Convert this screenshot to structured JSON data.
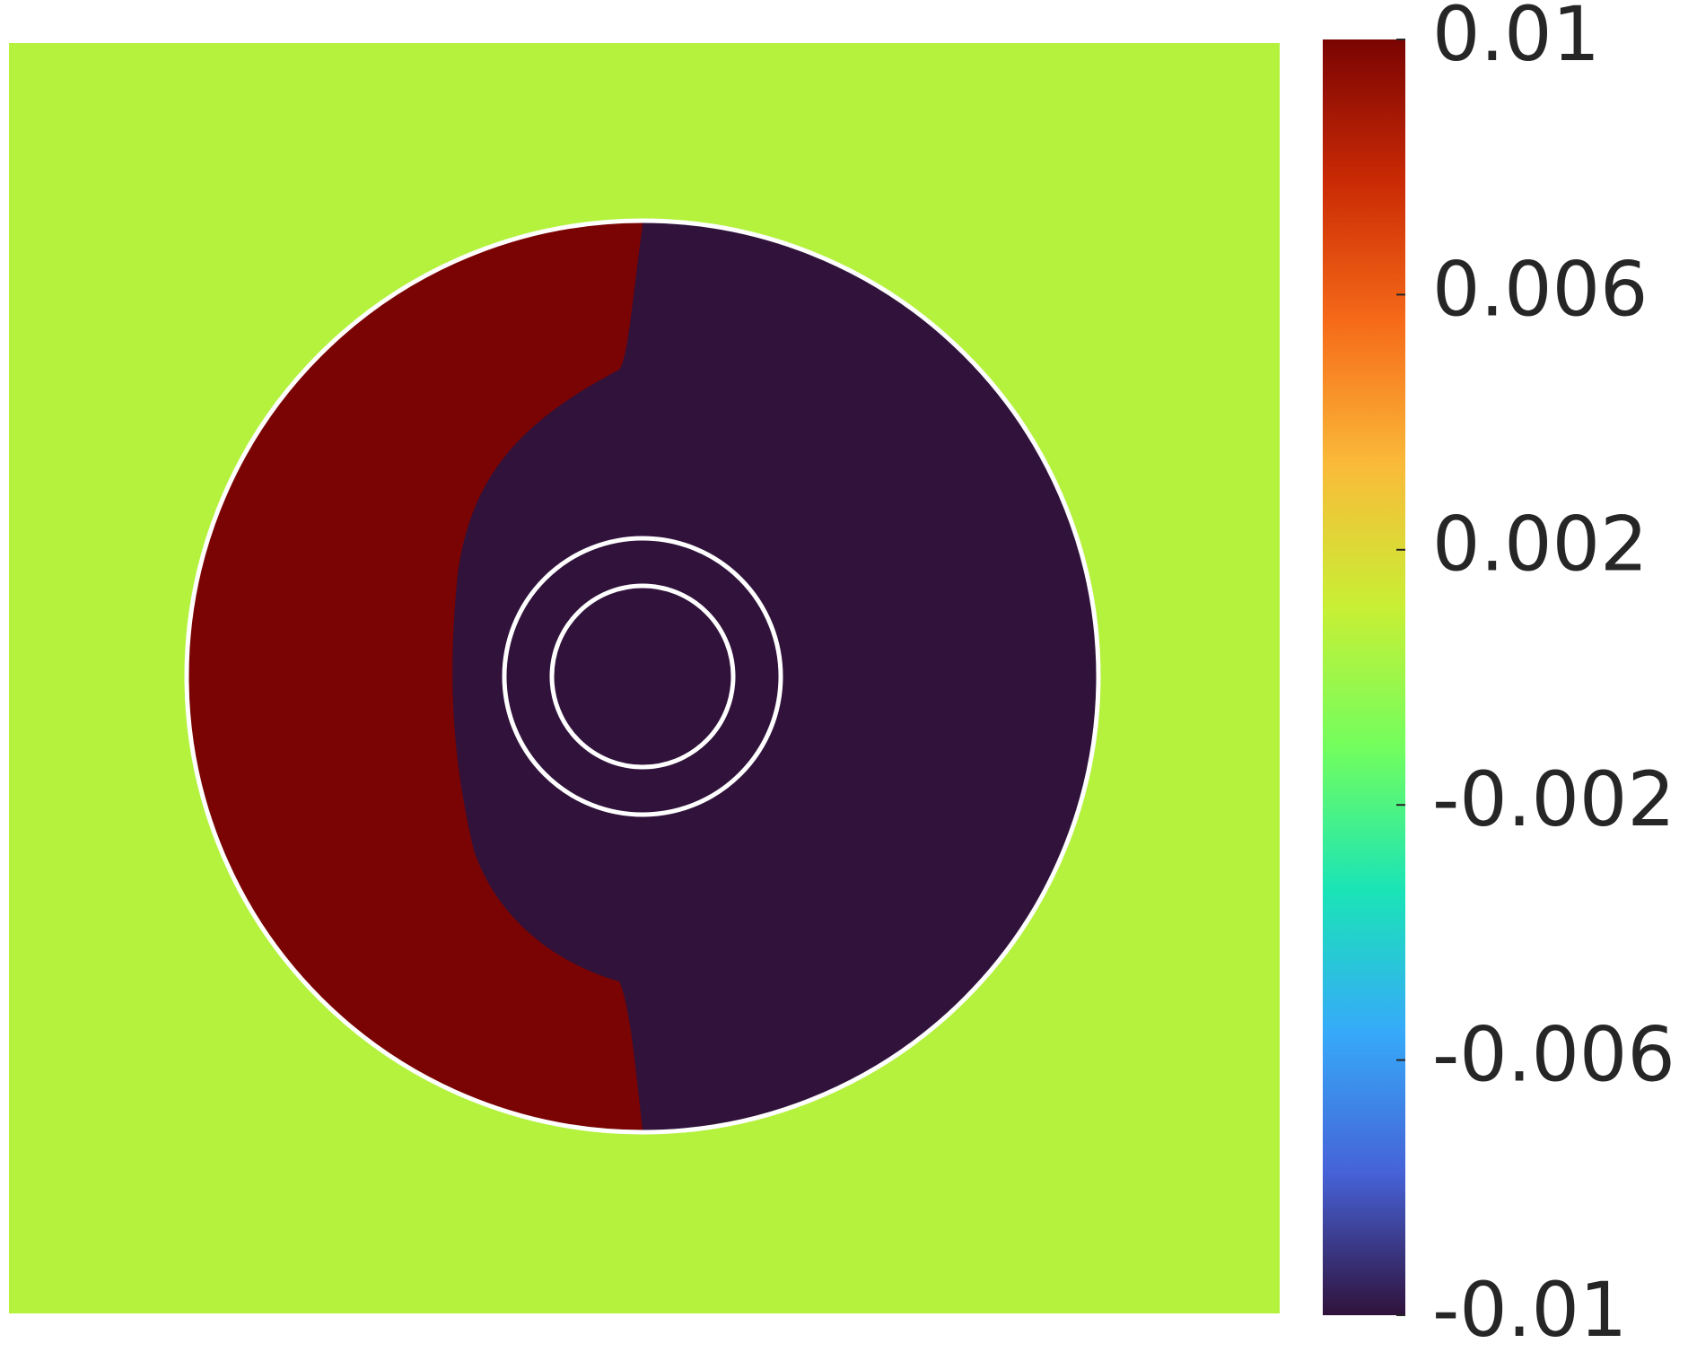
{
  "chart_data": {
    "type": "field",
    "colorbar": {
      "lim": [
        -0.01,
        0.01
      ],
      "ticks": [
        0.01,
        0.006,
        0.002,
        -0.002,
        -0.006,
        -0.01
      ],
      "colormap": [
        "#30123b",
        "#4662d7",
        "#36aaf9",
        "#1ae4b6",
        "#72fe5e",
        "#c8ef34",
        "#faba39",
        "#f66b19",
        "#ca2a04",
        "#7a0403"
      ]
    },
    "values": [
      0.01,
      -0.01,
      0.0006
    ]
  }
}
